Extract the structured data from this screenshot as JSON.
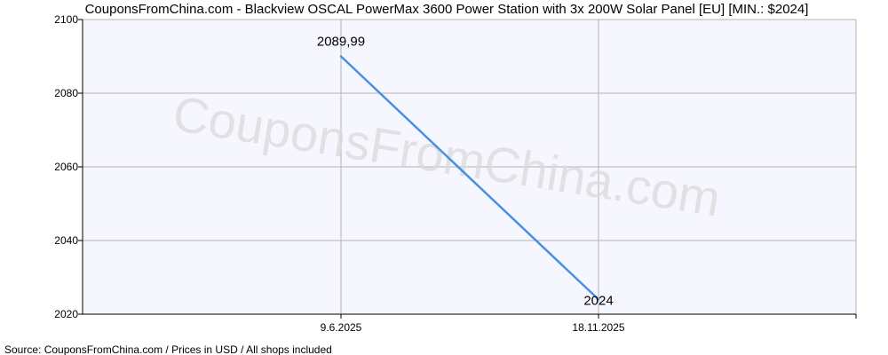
{
  "chart_data": {
    "type": "line",
    "title": "CouponsFromChina.com - Blackview OSCAL PowerMax 3600 Power Station with 3x 200W Solar Panel [EU] [MIN.: $2024]",
    "x": [
      "9.6.2025",
      "18.11.2025"
    ],
    "series": [
      {
        "values": [
          2089.99,
          2024
        ],
        "data_labels": [
          "2089,99",
          "2024"
        ]
      }
    ],
    "ylim": [
      2020,
      2100
    ],
    "y_ticks": [
      2020,
      2040,
      2060,
      2080,
      2100
    ],
    "y_tick_labels": [
      "2020",
      "2040",
      "2060",
      "2080",
      "2100"
    ],
    "x_tick_labels": [
      "9.6.2025",
      "18.11.2025"
    ],
    "grid": true,
    "line_color": "#4a90e2",
    "plot_background": "#f6f6fe",
    "grid_color": "#b4b4b4"
  },
  "watermark": "CouponsFromChina.com",
  "source": "Source: CouponsFromChina.com / Prices in USD / All shops included"
}
